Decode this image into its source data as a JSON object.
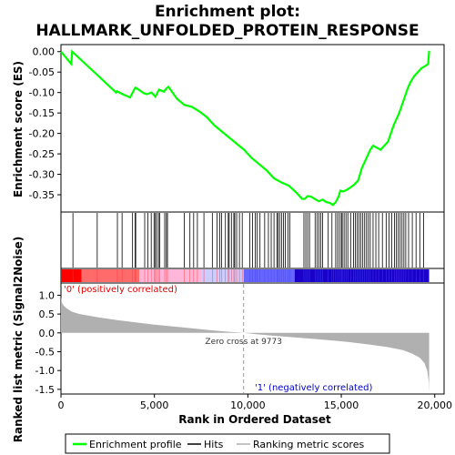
{
  "chart_data": {
    "type": "line",
    "title": "Enrichment plot:",
    "subtitle": "HALLMARK_UNFOLDED_PROTEIN_RESPONSE",
    "es_panel": {
      "ylabel": "Enrichment score (ES)",
      "ylim": [
        -0.39,
        0.015
      ],
      "yticks": [
        0.0,
        -0.05,
        -0.1,
        -0.15,
        -0.2,
        -0.25,
        -0.3,
        -0.35
      ],
      "ytick_labels": [
        "0.00",
        "-0.05",
        "-0.10",
        "-0.15",
        "-0.20",
        "-0.25",
        "-0.30",
        "-0.35"
      ],
      "series": [
        {
          "name": "Enrichment profile",
          "color": "#00ff00",
          "x": [
            0,
            550,
            600,
            1900,
            1950,
            2950,
            3000,
            3300,
            3700,
            3950,
            4000,
            4450,
            4600,
            4850,
            5050,
            5250,
            5500,
            5650,
            5750,
            6200,
            6600,
            7000,
            7400,
            7800,
            8200,
            8600,
            9000,
            9400,
            9800,
            10200,
            10600,
            11000,
            11400,
            11800,
            12050,
            12200,
            12600,
            12900,
            13050,
            13200,
            13400,
            13650,
            13800,
            14000,
            14200,
            14400,
            14550,
            14700,
            14850,
            14950,
            15100,
            15300,
            15500,
            15700,
            15900,
            16000,
            16100,
            16250,
            16400,
            16550,
            16700,
            16900,
            17100,
            17300,
            17500,
            17650,
            17800,
            17950,
            18100,
            18250,
            18400,
            18550,
            18700,
            18900,
            19100,
            19300,
            19500,
            19650,
            19700
          ],
          "values": [
            0.0,
            -0.03,
            0.0,
            -0.055,
            -0.057,
            -0.1,
            -0.097,
            -0.104,
            -0.112,
            -0.09,
            -0.088,
            -0.102,
            -0.104,
            -0.1,
            -0.11,
            -0.093,
            -0.098,
            -0.09,
            -0.086,
            -0.115,
            -0.13,
            -0.135,
            -0.146,
            -0.16,
            -0.18,
            -0.195,
            -0.21,
            -0.225,
            -0.24,
            -0.26,
            -0.275,
            -0.29,
            -0.31,
            -0.32,
            -0.325,
            -0.328,
            -0.345,
            -0.36,
            -0.36,
            -0.353,
            -0.355,
            -0.362,
            -0.366,
            -0.362,
            -0.368,
            -0.37,
            -0.375,
            -0.368,
            -0.355,
            -0.34,
            -0.342,
            -0.338,
            -0.332,
            -0.325,
            -0.315,
            -0.3,
            -0.285,
            -0.27,
            -0.255,
            -0.24,
            -0.23,
            -0.235,
            -0.24,
            -0.23,
            -0.22,
            -0.2,
            -0.18,
            -0.165,
            -0.15,
            -0.13,
            -0.11,
            -0.09,
            -0.075,
            -0.06,
            -0.05,
            -0.04,
            -0.035,
            -0.03,
            0.002
          ]
        }
      ]
    },
    "hits": [
      640,
      1940,
      3020,
      3270,
      3830,
      3970,
      4000,
      4480,
      4650,
      4830,
      4980,
      5050,
      5120,
      5220,
      5290,
      5550,
      5640,
      5700,
      6600,
      6900,
      7100,
      7300,
      7650,
      8100,
      8350,
      8500,
      8600,
      8800,
      8950,
      9000,
      9120,
      9250,
      9300,
      9400,
      9550,
      9700,
      10100,
      10250,
      10400,
      10500,
      10650,
      10900,
      11100,
      11250,
      11400,
      11550,
      11620,
      11700,
      11800,
      11900,
      12000,
      12150,
      12250,
      13000,
      13100,
      13200,
      13300,
      13600,
      13700,
      13800,
      13900,
      14000,
      14300,
      14500,
      14700,
      14800,
      14900,
      15000,
      15050,
      15150,
      15250,
      15350,
      15500,
      15650,
      15750,
      15850,
      15950,
      16050,
      16150,
      16250,
      16350,
      16450,
      16550,
      16700,
      16850,
      17000,
      17200,
      17400,
      17550,
      17700,
      17850,
      17950,
      18050,
      18150,
      18250,
      18350,
      18450,
      18600,
      18800,
      19000,
      19200,
      19400
    ],
    "heatmap_bar": {
      "colors": [
        "#ff0000",
        "#ff6a6a",
        "#ffb6d9",
        "#ccccff",
        "#6666ff",
        "#1a00c8"
      ],
      "boundaries": [
        0,
        1100,
        4200,
        7500,
        9773,
        12500,
        14600,
        18700,
        19700
      ]
    },
    "metric_panel": {
      "ylabel": "Ranked list metric (Signal2Noise)",
      "ylim": [
        -1.6,
        1.3
      ],
      "yticks": [
        1.0,
        0.5,
        0.0,
        -0.5,
        -1.0,
        -1.5
      ],
      "ytick_labels": [
        "1.0",
        "0.5",
        "0.0",
        "-0.5",
        "-1.0",
        "-1.5"
      ],
      "series": [
        {
          "name": "Ranking metric scores",
          "color": "#b0b0b0",
          "x": [
            0,
            50,
            150,
            300,
            600,
            1000,
            2000,
            3000,
            4000,
            5000,
            6000,
            7000,
            8000,
            9000,
            9773,
            10500,
            11500,
            12500,
            13500,
            14500,
            15500,
            16500,
            17500,
            18300,
            18800,
            19200,
            19450,
            19600,
            19680,
            19700
          ],
          "values": [
            0.95,
            0.8,
            0.72,
            0.65,
            0.56,
            0.5,
            0.41,
            0.34,
            0.28,
            0.22,
            0.17,
            0.12,
            0.07,
            0.03,
            0.0,
            -0.04,
            -0.08,
            -0.12,
            -0.16,
            -0.2,
            -0.25,
            -0.31,
            -0.38,
            -0.46,
            -0.55,
            -0.66,
            -0.8,
            -1.0,
            -1.3,
            -1.58
          ]
        }
      ],
      "annotations": {
        "positive": "'0' (positively correlated)",
        "negative": "'1' (negatively correlated)",
        "zero_cross": "Zero cross at 9773"
      },
      "zero_cross_x": 9773
    },
    "xlabel": "Rank in Ordered Dataset",
    "xlim": [
      0,
      20500
    ],
    "xticks": [
      0,
      5000,
      10000,
      15000,
      20000
    ],
    "xtick_labels": [
      "0",
      "5,000",
      "10,000",
      "15,000",
      "20,000"
    ],
    "legend": {
      "position": "bottom",
      "entries": [
        {
          "label": "Enrichment profile",
          "color": "#00ff00"
        },
        {
          "label": "Hits",
          "color": "#000000"
        },
        {
          "label": "Ranking metric scores",
          "color": "#b0b0b0"
        }
      ]
    }
  }
}
